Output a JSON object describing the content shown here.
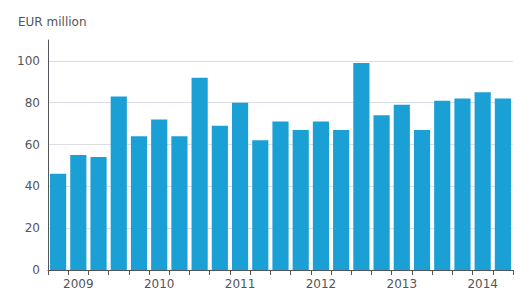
{
  "chart_data": {
    "type": "bar",
    "categories": [
      null,
      "2009",
      null,
      null,
      null,
      "2010",
      null,
      null,
      null,
      "2011",
      null,
      null,
      null,
      "2012",
      null,
      null,
      null,
      "2013",
      null,
      null,
      null,
      "2014",
      null
    ],
    "values": [
      46,
      55,
      54,
      83,
      64,
      72,
      64,
      92,
      69,
      80,
      62,
      71,
      67,
      71,
      67,
      99,
      74,
      79,
      67,
      81,
      82,
      85,
      82
    ],
    "color": "#1ba0d5",
    "ylabel": "EUR million",
    "ylim": [
      0,
      110
    ],
    "yticks": [
      0,
      20,
      40,
      60,
      80,
      100
    ],
    "grid": true
  }
}
